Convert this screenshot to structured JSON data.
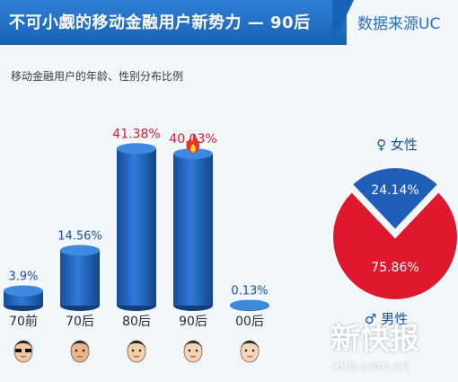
{
  "header": {
    "title": "不可小觑的移动金融用户新势力 — 90后",
    "source": "数据来源UC"
  },
  "subtitle": "移动金融用户的年龄、性别分布比例",
  "chart_data": [
    {
      "type": "bar",
      "title": "移动金融用户的年龄、性别分布比例",
      "categories": [
        "70前",
        "70后",
        "80后",
        "90后",
        "00后"
      ],
      "values": [
        3.9,
        14.56,
        41.38,
        40.03,
        0.13
      ],
      "labels": [
        "3.9%",
        "14.56%",
        "41.38%",
        "40.03%",
        "0.13%"
      ],
      "highlight_labels": [
        false,
        false,
        true,
        true,
        false
      ],
      "unit": "%",
      "ylim": [
        0,
        45
      ],
      "colors": {
        "bar": "#1f5fb8",
        "highlight_label": "#e0182d",
        "label": "#1a4fa0"
      }
    },
    {
      "type": "pie",
      "slices": [
        {
          "name": "女性",
          "symbol": "♀",
          "value": 24.14,
          "label": "24.14%",
          "color": "#1f5fb8"
        },
        {
          "name": "男性",
          "symbol": "♂",
          "value": 75.86,
          "label": "75.86%",
          "color": "#e0182d"
        }
      ]
    }
  ],
  "watermark": {
    "text": "新快报",
    "url": "xkb.com.cn"
  }
}
